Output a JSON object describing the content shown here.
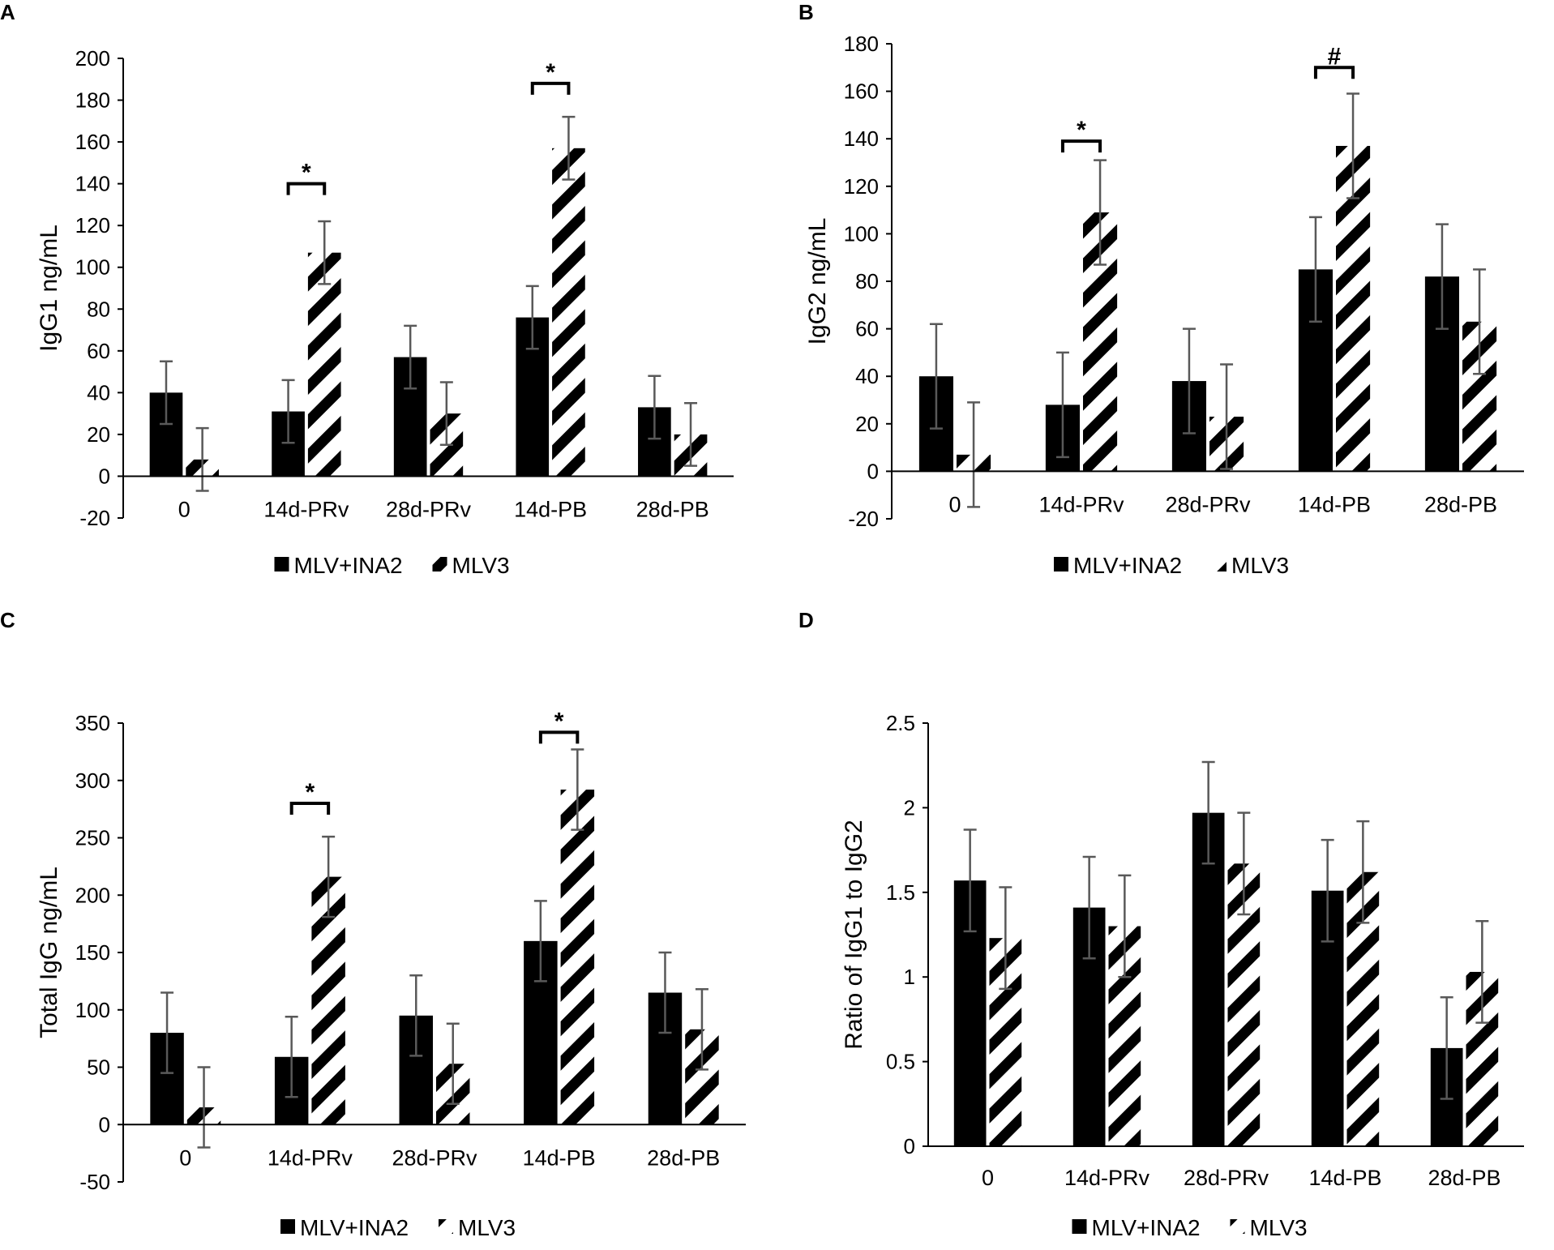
{
  "chart_data": [
    {
      "panel": "A",
      "type": "bar",
      "title": "",
      "xlabel": "",
      "ylabel": "IgG1 ng/mL",
      "ylim": [
        -20,
        200
      ],
      "ytick_step": 20,
      "yticks": [
        "-20",
        "0",
        "20",
        "40",
        "60",
        "80",
        "100",
        "120",
        "140",
        "160",
        "180",
        "200"
      ],
      "categories": [
        "0",
        "14d-PRv",
        "28d-PRv",
        "14d-PB",
        "28d-PB"
      ],
      "series": [
        {
          "name": "MLV+INA2",
          "pattern": "solid",
          "values": [
            40,
            31,
            57,
            76,
            33
          ],
          "errors": [
            15,
            15,
            15,
            15,
            15
          ]
        },
        {
          "name": "MLV3",
          "pattern": "hatched",
          "values": [
            8,
            107,
            30,
            157,
            20
          ],
          "errors": [
            15,
            15,
            15,
            15,
            15
          ]
        }
      ],
      "legend": "bottom",
      "significance": [
        {
          "category_index": 1,
          "symbol": "*",
          "y": 140
        },
        {
          "category_index": 3,
          "symbol": "*",
          "y": 188
        }
      ]
    },
    {
      "panel": "B",
      "type": "bar",
      "title": "",
      "xlabel": "",
      "ylabel": "IgG2 ng/mL",
      "ylim": [
        -20,
        180
      ],
      "ytick_step": 20,
      "yticks": [
        "-20",
        "0",
        "20",
        "40",
        "60",
        "80",
        "100",
        "120",
        "140",
        "160",
        "180"
      ],
      "categories": [
        "0",
        "14d-PRv",
        "28d-PRv",
        "14d-PB",
        "28d-PB"
      ],
      "series": [
        {
          "name": "MLV+INA2",
          "pattern": "solid",
          "values": [
            40,
            28,
            38,
            85,
            82
          ],
          "errors": [
            22,
            22,
            22,
            22,
            22
          ]
        },
        {
          "name": "MLV3",
          "pattern": "hatched",
          "values": [
            7,
            109,
            23,
            137,
            63
          ],
          "errors": [
            22,
            22,
            22,
            22,
            22
          ]
        }
      ],
      "legend": "bottom",
      "significance": [
        {
          "category_index": 1,
          "symbol": "*",
          "y": 139
        },
        {
          "category_index": 3,
          "symbol": "#",
          "y": 170
        }
      ]
    },
    {
      "panel": "C",
      "type": "bar",
      "title": "",
      "xlabel": "",
      "ylabel": "Total IgG ng/mL",
      "ylim": [
        -50,
        350
      ],
      "ytick_step": 50,
      "yticks": [
        "-50",
        "0",
        "50",
        "100",
        "150",
        "200",
        "250",
        "300",
        "350"
      ],
      "categories": [
        "0",
        "14d-PRv",
        "28d-PRv",
        "14d-PB",
        "28d-PB"
      ],
      "series": [
        {
          "name": "MLV+INA2",
          "pattern": "solid",
          "values": [
            80,
            59,
            95,
            160,
            115
          ],
          "errors": [
            35,
            35,
            35,
            35,
            35
          ]
        },
        {
          "name": "MLV3",
          "pattern": "hatched",
          "values": [
            15,
            216,
            53,
            292,
            83
          ],
          "errors": [
            35,
            35,
            35,
            35,
            35
          ]
        }
      ],
      "legend": "bottom",
      "significance": [
        {
          "category_index": 1,
          "symbol": "*",
          "y": 280
        },
        {
          "category_index": 3,
          "symbol": "*",
          "y": 342
        }
      ]
    },
    {
      "panel": "D",
      "type": "bar",
      "title": "",
      "xlabel": "",
      "ylabel": "Ratio of IgG1 to IgG2",
      "ylim": [
        0,
        2.5
      ],
      "ytick_step": 0.5,
      "yticks": [
        "0",
        "0.5",
        "1",
        "1.5",
        "2",
        "2.5"
      ],
      "categories": [
        "0",
        "14d-PRv",
        "28d-PRv",
        "14d-PB",
        "28d-PB"
      ],
      "series": [
        {
          "name": "MLV+INA2",
          "pattern": "solid",
          "values": [
            1.57,
            1.41,
            1.97,
            1.51,
            0.58
          ],
          "errors": [
            0.3,
            0.3,
            0.3,
            0.3,
            0.3
          ]
        },
        {
          "name": "MLV3",
          "pattern": "hatched",
          "values": [
            1.23,
            1.3,
            1.67,
            1.62,
            1.03
          ],
          "errors": [
            0.3,
            0.3,
            0.3,
            0.3,
            0.3
          ]
        }
      ],
      "legend": "bottom",
      "significance": []
    }
  ]
}
